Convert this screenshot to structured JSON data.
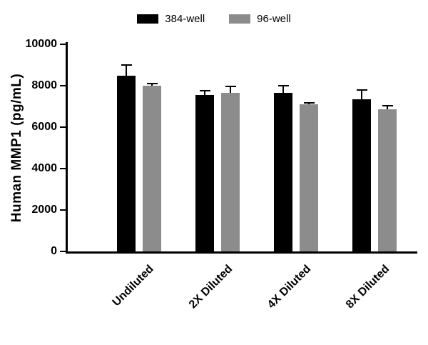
{
  "chart_data": {
    "type": "bar",
    "title": "",
    "ylabel": "Human MMP1 (pg/mL)",
    "xlabel": "",
    "ylim": [
      0,
      10000
    ],
    "yticks": [
      0,
      2000,
      4000,
      6000,
      8000,
      10000
    ],
    "grid": false,
    "legend_position": "top",
    "categories": [
      "Undiluted",
      "2X Diluted",
      "4X Diluted",
      "8X Diluted"
    ],
    "series": [
      {
        "name": "384-well",
        "color": "#000000",
        "values": [
          8500,
          7550,
          7650,
          7350
        ],
        "errors": [
          500,
          200,
          350,
          450
        ]
      },
      {
        "name": "96-well",
        "color": "#8c8c8c",
        "values": [
          8000,
          7650,
          7100,
          6850
        ],
        "errors": [
          120,
          300,
          60,
          200
        ]
      }
    ]
  },
  "colors": {
    "axis": "#000000",
    "error_bar": "#000000",
    "background": "#ffffff",
    "text": "#000000"
  }
}
